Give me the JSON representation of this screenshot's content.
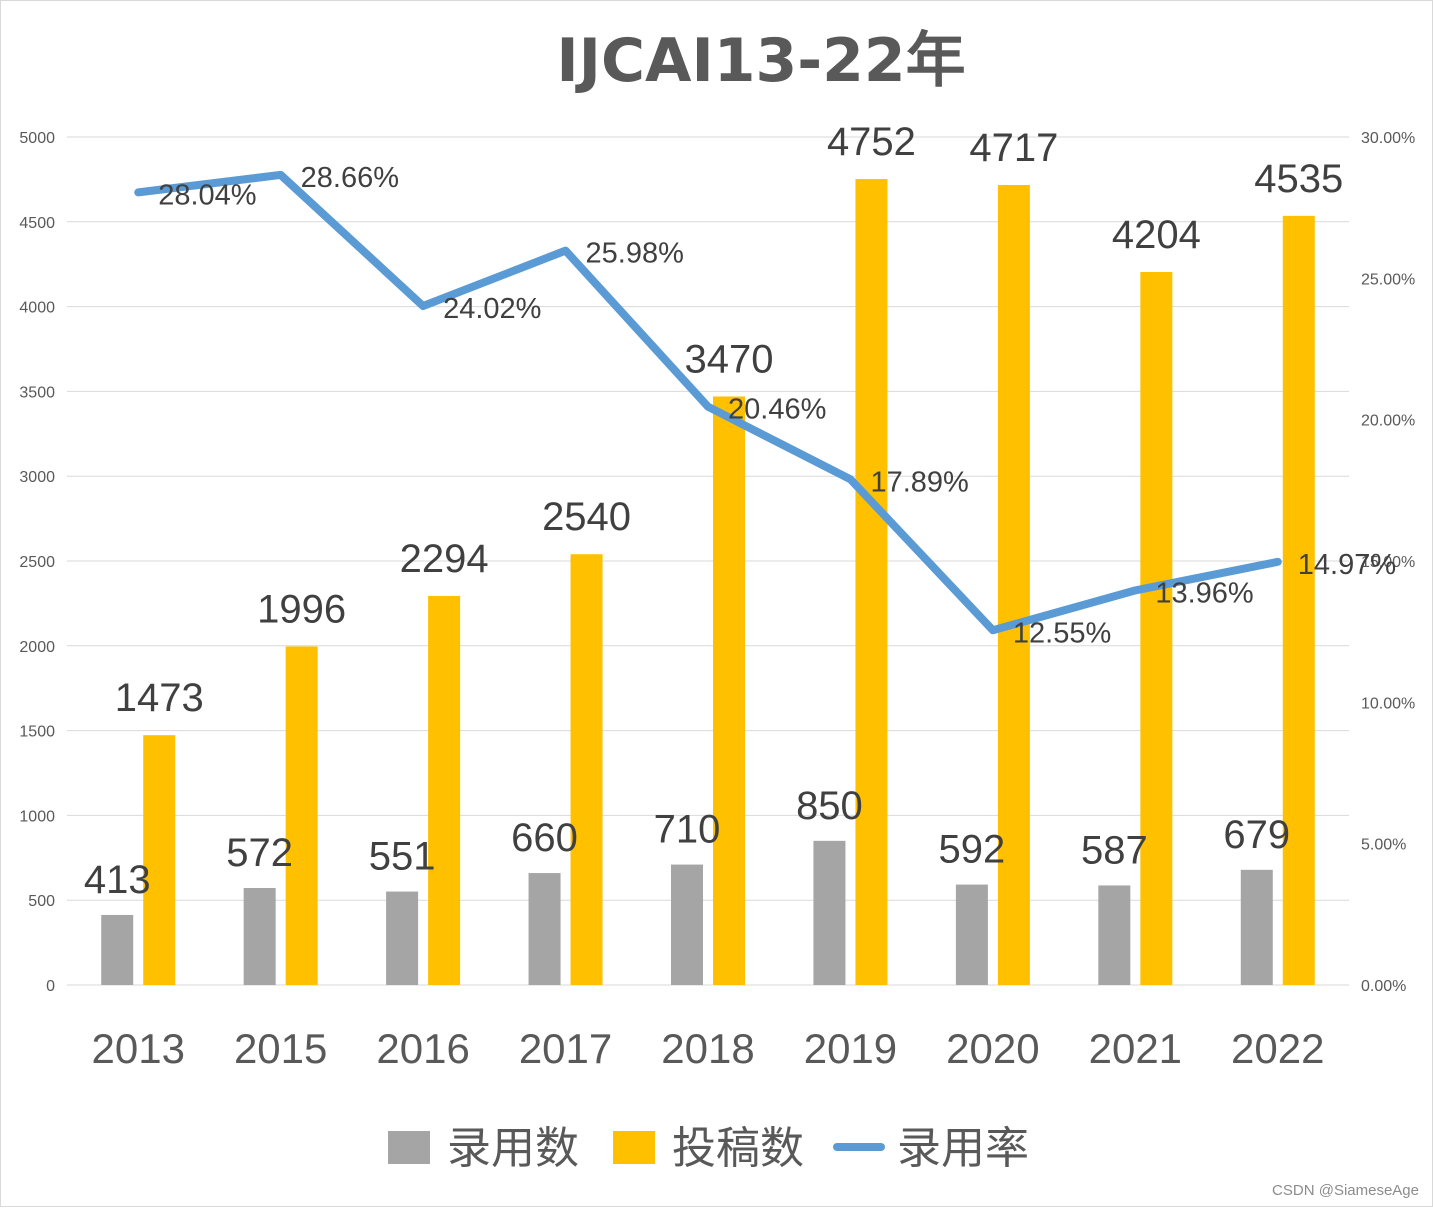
{
  "watermark": "CSDN @SiameseAge",
  "colors": {
    "accepted": "#a5a5a5",
    "submitted": "#ffc000",
    "rate": "#5b9bd5",
    "grid": "#d9d9d9",
    "text": "#595959"
  },
  "chart_data": {
    "type": "bar",
    "title": "IJCAI13-22年",
    "categories": [
      "2013",
      "2015",
      "2016",
      "2017",
      "2018",
      "2019",
      "2020",
      "2021",
      "2022"
    ],
    "series": [
      {
        "name": "录用数",
        "kind": "bar",
        "axis": "left",
        "values": [
          413,
          572,
          551,
          660,
          710,
          850,
          592,
          587,
          679
        ]
      },
      {
        "name": "投稿数",
        "kind": "bar",
        "axis": "left",
        "values": [
          1473,
          1996,
          2294,
          2540,
          3470,
          4752,
          4717,
          4204,
          4535
        ]
      },
      {
        "name": "录用率",
        "kind": "line",
        "axis": "right",
        "values": [
          28.04,
          28.66,
          24.02,
          25.98,
          20.46,
          17.89,
          12.55,
          13.96,
          14.97
        ],
        "labels": [
          "28.04%",
          "28.66%",
          "24.02%",
          "25.98%",
          "20.46%",
          "17.89%",
          "12.55%",
          "13.96%",
          "14.97%"
        ]
      }
    ],
    "y_left": {
      "ylim": [
        0,
        5000
      ],
      "ticks": [
        "0",
        "500",
        "1000",
        "1500",
        "2000",
        "2500",
        "3000",
        "3500",
        "4000",
        "4500",
        "5000"
      ]
    },
    "y_right": {
      "ylim": [
        0,
        30
      ],
      "ticks": [
        "0.00%",
        "5.00%",
        "10.00%",
        "15.00%",
        "20.00%",
        "25.00%",
        "30.00%"
      ]
    },
    "grid": true,
    "legend_position": "bottom"
  }
}
